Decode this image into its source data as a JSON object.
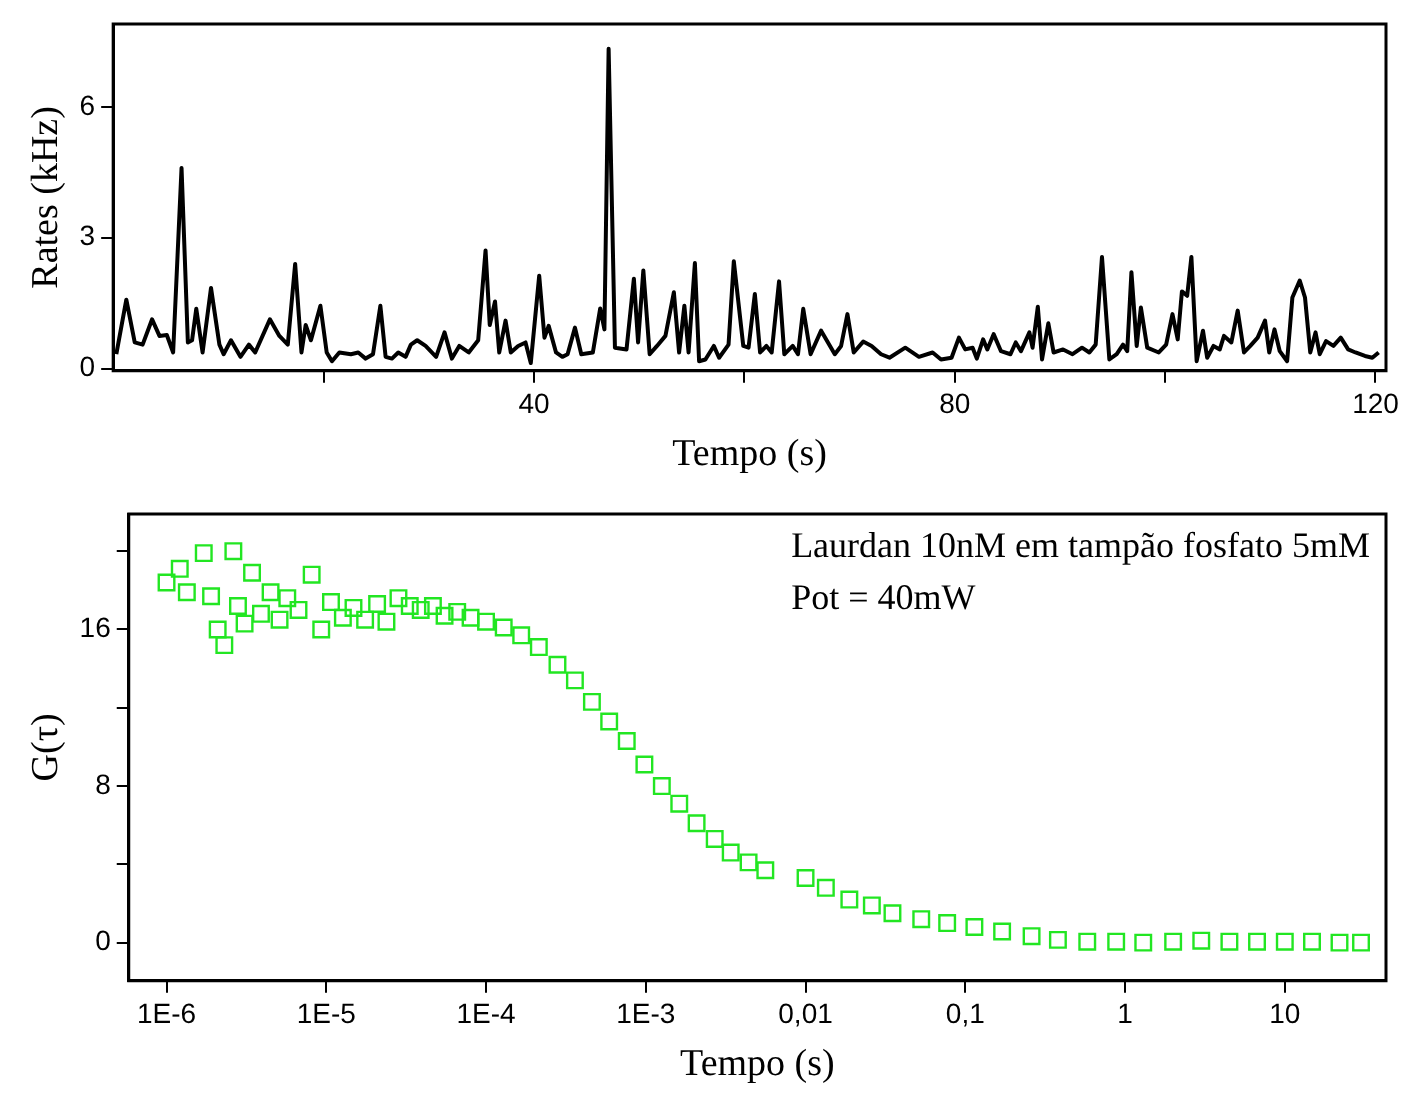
{
  "chart_data": [
    {
      "type": "line",
      "xlabel": "Tempo (s)",
      "ylabel": "Rates (kHz)",
      "xlim": [
        0,
        121
      ],
      "ylim": [
        -0.05,
        7.9
      ],
      "xticks": [
        {
          "value": 20,
          "label": null
        },
        40,
        {
          "value": 60,
          "label": null
        },
        80,
        {
          "value": 100,
          "label": null
        },
        120
      ],
      "yticks": [
        0,
        3,
        6
      ],
      "grid": false,
      "legend": false,
      "marker": "none",
      "line_style": "solid",
      "series": [
        {
          "color": "#000000",
          "x": [
            0.3,
            1.25,
            2.05,
            2.8,
            3.7,
            4.4,
            5.1,
            5.7,
            6.5,
            7.1,
            7.5,
            7.9,
            8.5,
            9.3,
            10.1,
            10.5,
            11.2,
            12.1,
            12.9,
            13.5,
            14.9,
            15.8,
            16.6,
            17.3,
            17.9,
            18.3,
            18.8,
            19.7,
            20.3,
            20.8,
            21.5,
            22.6,
            23.3,
            24.0,
            24.7,
            25.4,
            25.9,
            26.5,
            27.1,
            27.8,
            28.3,
            28.9,
            29.7,
            30.7,
            31.5,
            32.2,
            32.9,
            33.8,
            34.7,
            35.4,
            35.8,
            36.3,
            36.7,
            37.3,
            37.8,
            38.5,
            39.2,
            39.7,
            40.5,
            41.0,
            41.4,
            42.1,
            42.7,
            43.2,
            43.9,
            44.5,
            45.6,
            46.3,
            46.7,
            47.1,
            47.7,
            48.8,
            49.5,
            49.9,
            50.4,
            51.0,
            51.7,
            52.5,
            53.3,
            53.8,
            54.3,
            54.7,
            55.3,
            55.7,
            56.3,
            57.1,
            57.6,
            58.5,
            59.0,
            59.9,
            60.4,
            61.0,
            61.5,
            62.1,
            62.6,
            63.3,
            63.8,
            64.6,
            65.1,
            65.6,
            66.3,
            67.3,
            68.6,
            69.2,
            69.8,
            70.4,
            71.3,
            72.1,
            73.0,
            73.8,
            75.3,
            76.6,
            77.9,
            78.7,
            79.7,
            80.4,
            81.0,
            81.7,
            82.1,
            82.7,
            83.1,
            83.7,
            84.4,
            85.3,
            85.8,
            86.3,
            87.1,
            87.4,
            87.9,
            88.3,
            88.9,
            89.4,
            90.3,
            91.2,
            92.1,
            92.8,
            93.4,
            94.0,
            94.7,
            95.4,
            96.0,
            96.4,
            96.8,
            97.3,
            97.7,
            98.3,
            99.4,
            100.1,
            100.7,
            101.2,
            101.6,
            102.1,
            102.5,
            103.0,
            103.6,
            104.0,
            104.6,
            105.2,
            105.6,
            106.3,
            106.9,
            107.5,
            108.1,
            108.8,
            109.5,
            109.9,
            110.4,
            110.9,
            111.6,
            112.1,
            112.8,
            113.3,
            113.8,
            114.3,
            114.7,
            115.3,
            116.0,
            116.7,
            117.4,
            118.1,
            119.0,
            119.7,
            120.3
          ],
          "values": [
            0.33,
            1.58,
            0.6,
            0.55,
            1.13,
            0.75,
            0.77,
            0.37,
            4.6,
            0.6,
            0.65,
            1.37,
            0.37,
            1.85,
            0.55,
            0.33,
            0.65,
            0.27,
            0.55,
            0.37,
            1.13,
            0.75,
            0.55,
            2.4,
            0.37,
            1.0,
            0.65,
            1.44,
            0.37,
            0.17,
            0.37,
            0.33,
            0.37,
            0.23,
            0.33,
            1.44,
            0.27,
            0.23,
            0.37,
            0.27,
            0.55,
            0.65,
            0.52,
            0.27,
            0.83,
            0.23,
            0.52,
            0.37,
            0.65,
            2.71,
            1.0,
            1.54,
            0.37,
            1.1,
            0.37,
            0.52,
            0.6,
            0.13,
            2.13,
            0.71,
            0.98,
            0.37,
            0.27,
            0.33,
            0.94,
            0.33,
            0.37,
            1.38,
            0.9,
            7.33,
            0.48,
            0.44,
            2.06,
            0.6,
            2.25,
            0.33,
            0.52,
            0.75,
            1.75,
            0.37,
            1.44,
            0.37,
            2.42,
            0.17,
            0.21,
            0.52,
            0.25,
            0.55,
            2.46,
            0.52,
            0.48,
            1.71,
            0.37,
            0.52,
            0.37,
            2.0,
            0.33,
            0.52,
            0.33,
            1.37,
            0.33,
            0.87,
            0.33,
            0.52,
            1.25,
            0.37,
            0.62,
            0.52,
            0.33,
            0.25,
            0.48,
            0.27,
            0.37,
            0.21,
            0.25,
            0.71,
            0.44,
            0.48,
            0.23,
            0.67,
            0.44,
            0.79,
            0.4,
            0.33,
            0.6,
            0.4,
            0.83,
            0.48,
            1.42,
            0.21,
            1.04,
            0.37,
            0.44,
            0.33,
            0.48,
            0.37,
            0.55,
            2.56,
            0.21,
            0.33,
            0.55,
            0.4,
            2.21,
            0.52,
            1.4,
            0.48,
            0.37,
            0.55,
            1.25,
            0.67,
            1.77,
            1.67,
            2.56,
            0.17,
            0.87,
            0.25,
            0.52,
            0.44,
            0.75,
            0.6,
            1.33,
            0.37,
            0.52,
            0.71,
            1.1,
            0.37,
            0.9,
            0.4,
            0.17,
            1.63,
            2.02,
            1.63,
            0.37,
            0.83,
            0.33,
            0.63,
            0.52,
            0.71,
            0.44,
            0.37,
            0.29,
            0.25,
            0.37
          ]
        }
      ]
    },
    {
      "type": "scatter",
      "xlabel": "Tempo (s)",
      "ylabel": "G(τ)",
      "log": "x",
      "xlim": [
        5.8e-07,
        43
      ],
      "ylim": [
        -1.95,
        21.9
      ],
      "xticks": [
        {
          "value": 1e-06,
          "label": "1E-6"
        },
        {
          "value": 1e-05,
          "label": "1E-5"
        },
        {
          "value": 0.0001,
          "label": "1E-4"
        },
        {
          "value": 0.001,
          "label": "1E-3"
        },
        {
          "value": 0.01,
          "label": "0,01"
        },
        {
          "value": 0.1,
          "label": "0,1"
        },
        1,
        10
      ],
      "yticks": [
        0,
        {
          "value": 4,
          "label": null
        },
        8,
        {
          "value": 12,
          "label": null
        },
        16,
        {
          "value": 20,
          "label": null
        }
      ],
      "grid": false,
      "legend": false,
      "marker": "square",
      "annotations": [
        "Laurdan 10nM em tampão fosfato 5mM",
        "Pot = 40mW"
      ],
      "series": [
        {
          "color": "#22e622",
          "x": [
            1e-06,
            1.21e-06,
            1.34e-06,
            1.71e-06,
            1.9e-06,
            2.09e-06,
            2.3e-06,
            2.62e-06,
            2.8e-06,
            3.08e-06,
            3.43e-06,
            3.9e-06,
            4.48e-06,
            5.1e-06,
            5.7e-06,
            6.7e-06,
            8.1e-06,
            9.3e-06,
            1.07e-05,
            1.27e-05,
            1.48e-05,
            1.75e-05,
            2.08e-05,
            2.38e-05,
            2.83e-05,
            3.33e-05,
            3.9e-05,
            4.65e-05,
            5.5e-05,
            6.6e-05,
            8e-05,
            0.0001,
            0.000129,
            0.000166,
            0.000214,
            0.00028,
            0.00036,
            0.00046,
            0.00059,
            0.00076,
            0.00098,
            0.00126,
            0.00162,
            0.00208,
            0.0027,
            0.0034,
            0.0044,
            0.0056,
            0.01,
            0.0134,
            0.0188,
            0.026,
            0.035,
            0.053,
            0.077,
            0.114,
            0.17,
            0.26,
            0.38,
            0.58,
            0.88,
            1.3,
            2.0,
            3.0,
            4.5,
            6.7,
            10,
            14.8,
            22,
            30
          ],
          "values": [
            18.4,
            19.1,
            17.9,
            19.9,
            17.7,
            16.0,
            15.2,
            20.0,
            17.2,
            16.3,
            18.9,
            16.8,
            17.9,
            16.5,
            17.6,
            17.0,
            18.8,
            16.0,
            17.4,
            16.6,
            17.1,
            16.5,
            17.3,
            16.4,
            17.6,
            17.2,
            17.0,
            17.2,
            16.7,
            16.9,
            16.6,
            16.4,
            16.1,
            15.7,
            15.1,
            14.2,
            13.4,
            12.3,
            11.3,
            10.3,
            9.1,
            8.0,
            7.1,
            6.1,
            5.3,
            4.6,
            4.1,
            3.7,
            3.3,
            2.8,
            2.2,
            1.9,
            1.5,
            1.2,
            1.0,
            0.8,
            0.57,
            0.33,
            0.14,
            0.05,
            0.05,
            0,
            0.05,
            0.1,
            0.05,
            0.05,
            0.05,
            0.05,
            0,
            0
          ]
        }
      ]
    }
  ]
}
